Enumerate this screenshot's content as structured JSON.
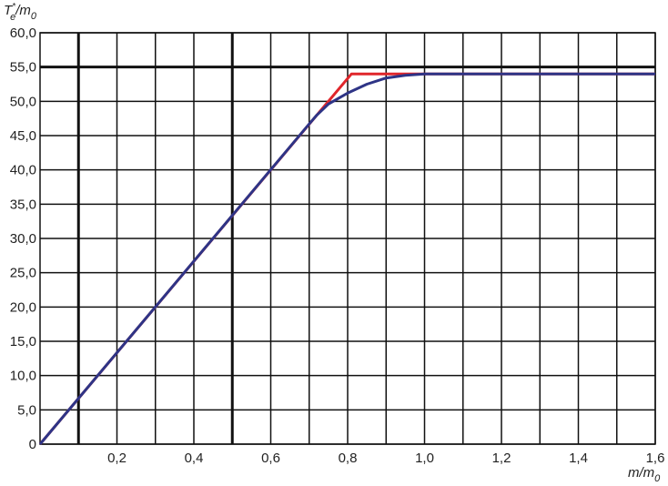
{
  "chart_data": {
    "type": "line",
    "ylabel": [
      "T",
      "*",
      "e",
      "/m",
      "0"
    ],
    "xlabel": [
      "m/m",
      "0"
    ],
    "xlim": [
      0,
      1.6
    ],
    "ylim": [
      0,
      60
    ],
    "xticks": [
      {
        "value": 0.2,
        "label": "0,2"
      },
      {
        "value": 0.4,
        "label": "0,4"
      },
      {
        "value": 0.6,
        "label": "0,6"
      },
      {
        "value": 0.8,
        "label": "0,8"
      },
      {
        "value": 1.0,
        "label": "1,0"
      },
      {
        "value": 1.2,
        "label": "1,2"
      },
      {
        "value": 1.4,
        "label": "1,4"
      },
      {
        "value": 1.6,
        "label": "1,6"
      }
    ],
    "xminor_ticks": [
      0.1,
      0.3,
      0.5,
      0.7,
      0.9,
      1.1,
      1.3,
      1.5
    ],
    "yticks": [
      0,
      {
        "value": 5,
        "label": "5,0"
      },
      {
        "value": 10,
        "label": "10,0"
      },
      {
        "value": 15,
        "label": "15,0"
      },
      {
        "value": 20,
        "label": "20,0"
      },
      {
        "value": 25,
        "label": "25,0"
      },
      {
        "value": 30,
        "label": "30,0"
      },
      {
        "value": 35,
        "label": "35,0"
      },
      {
        "value": 40,
        "label": "40,0"
      },
      {
        "value": 45,
        "label": "45,0"
      },
      {
        "value": 50,
        "label": "50,0"
      },
      {
        "value": 55,
        "label": "55,0"
      },
      {
        "value": 60,
        "label": "60,0"
      }
    ],
    "thick_grid": {
      "x": [
        0.1,
        0.5
      ],
      "y": [
        55
      ]
    },
    "grid": true,
    "series": [
      {
        "color": "#e0262b",
        "x": [
          0,
          0.81,
          1.6
        ],
        "y": [
          0,
          54,
          54
        ]
      },
      {
        "color": "#2e3486",
        "x": [
          0,
          0.7,
          0.72,
          0.75,
          0.8,
          0.85,
          0.9,
          0.95,
          1.0,
          1.6
        ],
        "y": [
          0,
          46.7,
          48,
          49.6,
          51.2,
          52.5,
          53.4,
          53.8,
          54,
          54
        ]
      }
    ]
  }
}
